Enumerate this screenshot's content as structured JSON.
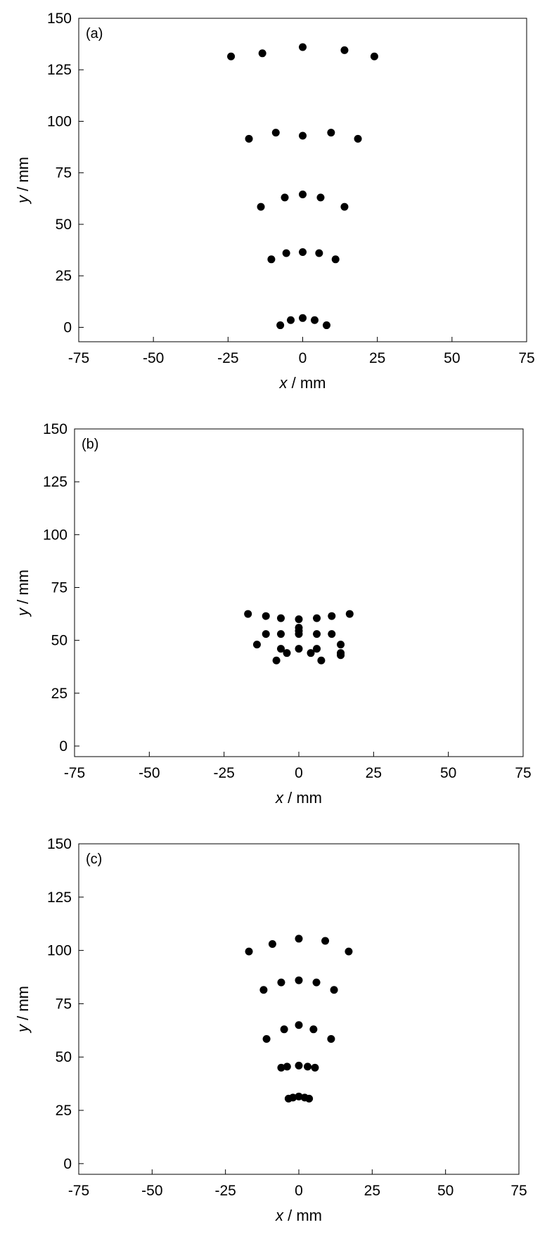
{
  "chart_data": [
    {
      "type": "scatter",
      "panel_label": "(a)",
      "xlabel_var": "x",
      "xlabel_unit": " / mm",
      "ylabel_var": "y",
      "ylabel_unit": " / mm",
      "xlim": [
        -75,
        75
      ],
      "ylim": [
        -7,
        150
      ],
      "xticks": [
        -75,
        -50,
        -25,
        0,
        25,
        50,
        75
      ],
      "yticks": [
        0,
        25,
        50,
        75,
        100,
        125,
        150
      ],
      "grid": false,
      "marker_color": "#000000",
      "points": [
        [
          -24,
          131.5
        ],
        [
          -13.5,
          133
        ],
        [
          0,
          136
        ],
        [
          14,
          134.5
        ],
        [
          24,
          131.5
        ],
        [
          -18,
          91.5
        ],
        [
          -9,
          94.5
        ],
        [
          0,
          93
        ],
        [
          9.5,
          94.5
        ],
        [
          18.5,
          91.5
        ],
        [
          -14,
          58.5
        ],
        [
          -6,
          63
        ],
        [
          0,
          64.5
        ],
        [
          6,
          63
        ],
        [
          14,
          58.5
        ],
        [
          -10.5,
          33
        ],
        [
          -5.5,
          36
        ],
        [
          0,
          36.5
        ],
        [
          5.5,
          36
        ],
        [
          11,
          33
        ],
        [
          -7.5,
          1
        ],
        [
          -4,
          3.5
        ],
        [
          0,
          4.5
        ],
        [
          4,
          3.5
        ],
        [
          8,
          1
        ]
      ]
    },
    {
      "type": "scatter",
      "panel_label": "(b)",
      "xlabel_var": "x",
      "xlabel_unit": " / mm",
      "ylabel_var": "y",
      "ylabel_unit": " / mm",
      "xlim": [
        -75,
        75
      ],
      "ylim": [
        -5,
        150
      ],
      "xticks": [
        -75,
        -50,
        -25,
        0,
        25,
        50,
        75
      ],
      "yticks": [
        0,
        25,
        50,
        75,
        100,
        125,
        150
      ],
      "grid": false,
      "marker_color": "#000000",
      "points": [
        [
          -17,
          62.5
        ],
        [
          -11,
          61.5
        ],
        [
          -6,
          60.5
        ],
        [
          0,
          60
        ],
        [
          6,
          60.5
        ],
        [
          11,
          61.5
        ],
        [
          17,
          62.5
        ],
        [
          -14,
          48
        ],
        [
          -11,
          53
        ],
        [
          -6,
          53
        ],
        [
          0,
          56
        ],
        [
          0,
          54.5
        ],
        [
          0,
          53
        ],
        [
          6,
          53
        ],
        [
          11,
          53
        ],
        [
          14,
          48
        ],
        [
          -6,
          46
        ],
        [
          -4,
          44
        ],
        [
          0,
          46
        ],
        [
          4,
          44
        ],
        [
          6,
          46
        ],
        [
          14,
          44
        ],
        [
          14,
          43
        ],
        [
          -7.5,
          40.5
        ],
        [
          7.5,
          40.5
        ]
      ]
    },
    {
      "type": "scatter",
      "panel_label": "(c)",
      "xlabel_var": "x",
      "xlabel_unit": " / mm",
      "ylabel_var": "y",
      "ylabel_unit": " / mm",
      "xlim": [
        -75,
        75
      ],
      "ylim": [
        -5,
        150
      ],
      "xticks": [
        -75,
        -50,
        -25,
        0,
        25,
        50,
        75
      ],
      "yticks": [
        0,
        25,
        50,
        75,
        100,
        125,
        150
      ],
      "grid": false,
      "marker_color": "#000000",
      "points": [
        [
          -17,
          99.5
        ],
        [
          -9,
          103
        ],
        [
          0,
          105.5
        ],
        [
          9,
          104.5
        ],
        [
          17,
          99.5
        ],
        [
          -12,
          81.5
        ],
        [
          -6,
          85
        ],
        [
          0,
          86
        ],
        [
          6,
          85
        ],
        [
          12,
          81.5
        ],
        [
          -11,
          58.5
        ],
        [
          -5,
          63
        ],
        [
          0,
          65
        ],
        [
          5,
          63
        ],
        [
          11,
          58.5
        ],
        [
          -6,
          45
        ],
        [
          -4,
          45.5
        ],
        [
          0,
          46
        ],
        [
          3,
          45.5
        ],
        [
          5.5,
          45
        ],
        [
          -3.5,
          30.5
        ],
        [
          -2,
          31
        ],
        [
          0,
          31.5
        ],
        [
          2,
          31
        ],
        [
          3.5,
          30.5
        ]
      ]
    }
  ]
}
